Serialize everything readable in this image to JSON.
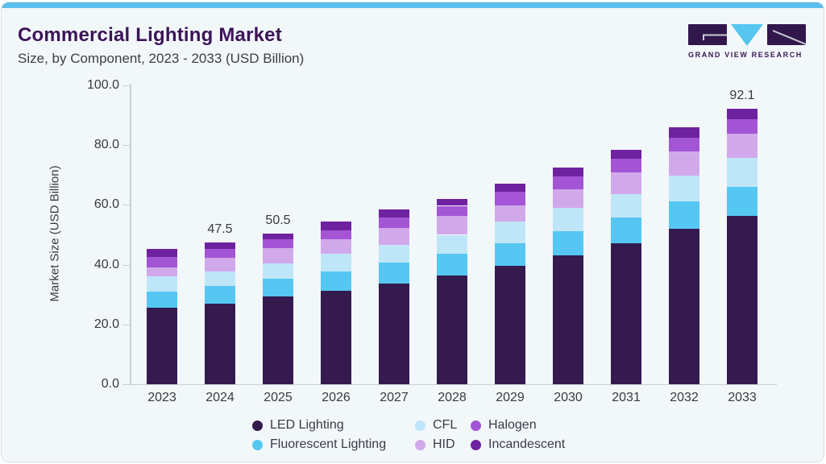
{
  "header": {
    "title": "Commercial Lighting Market",
    "subtitle": "Size, by Component, 2023 - 2033 (USD Billion)"
  },
  "logo": {
    "text": "GRAND VIEW RESEARCH",
    "tile_color": "#32174D",
    "triangle_color": "#56C5F0"
  },
  "chart_data": {
    "type": "bar",
    "stacked": true,
    "title": "Commercial Lighting Market Size, by Component, 2023 - 2033 (USD Billion)",
    "categories": [
      "2023",
      "2024",
      "2025",
      "2026",
      "2027",
      "2028",
      "2029",
      "2030",
      "2031",
      "2032",
      "2033"
    ],
    "series": [
      {
        "name": "LED Lighting",
        "color": "#341A4F",
        "values": [
          25.5,
          27.0,
          29.3,
          31.3,
          33.8,
          36.5,
          39.6,
          43.0,
          47.3,
          52.0,
          56.4
        ]
      },
      {
        "name": "Fluorescent Lighting",
        "color": "#56C7F2",
        "values": [
          5.5,
          5.9,
          6.0,
          6.4,
          6.8,
          7.2,
          7.5,
          8.1,
          8.5,
          9.3,
          9.6
        ]
      },
      {
        "name": "CFL",
        "color": "#BFE6F8",
        "values": [
          5.0,
          4.9,
          5.2,
          6.0,
          6.0,
          6.3,
          7.4,
          7.9,
          7.9,
          8.4,
          9.8
        ]
      },
      {
        "name": "HID",
        "color": "#D1A9EB",
        "values": [
          3.2,
          4.5,
          5.0,
          4.9,
          5.7,
          6.3,
          5.4,
          6.1,
          7.2,
          8.3,
          8.1
        ]
      },
      {
        "name": "Halogen",
        "color": "#A455D6",
        "values": [
          3.4,
          3.0,
          3.0,
          2.9,
          3.6,
          3.4,
          4.5,
          4.5,
          4.5,
          4.5,
          4.8
        ]
      },
      {
        "name": "Incandescent",
        "color": "#6E22A0",
        "values": [
          2.7,
          2.2,
          2.0,
          2.9,
          2.5,
          2.4,
          2.7,
          2.9,
          3.0,
          3.6,
          3.4
        ]
      }
    ],
    "total_labels": [
      "",
      "47.5",
      "50.5",
      "",
      "",
      "",
      "",
      "",
      "",
      "",
      "92.1"
    ],
    "ylabel": "Market Size (USD Billion)",
    "yticks": [
      0,
      20,
      40,
      60,
      80,
      100
    ],
    "ytick_labels": [
      "0.0",
      "20.0",
      "40.0",
      "60.0",
      "80.0",
      "100.0"
    ],
    "ylim": [
      0,
      100
    ],
    "grid": false,
    "legend_position": "bottom",
    "legend_columns": [
      [
        "LED Lighting",
        "Fluorescent Lighting"
      ],
      [
        "CFL",
        "HID"
      ],
      [
        "Halogen",
        "Incandescent"
      ]
    ]
  }
}
